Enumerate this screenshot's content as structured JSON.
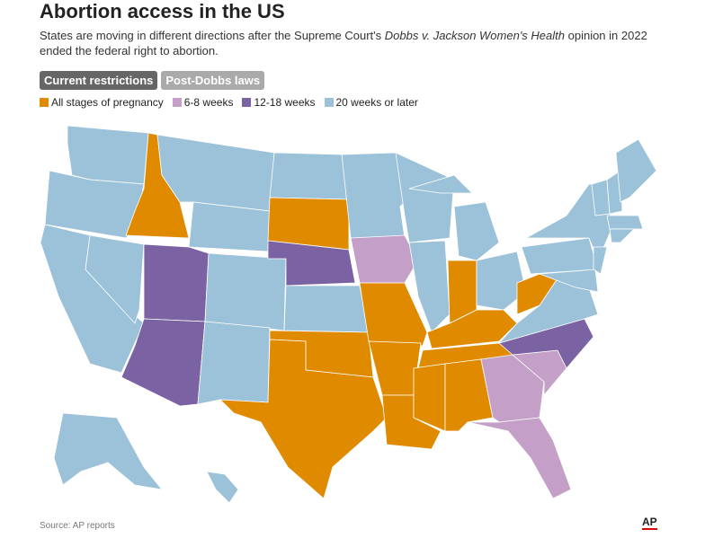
{
  "title": "Abortion access in the US",
  "subtitle": [
    "States are moving in different directions after the Supreme Court's ",
    "Dobbs v. Jackson Women's Health",
    " opinion in 2022 ended the federal right to abortion."
  ],
  "tabs": [
    "Current restrictions",
    "Post-Dobbs laws"
  ],
  "legend": [
    {
      "label": "All stages of pregnancy",
      "color": "#e08a00"
    },
    {
      "label": "6-8 weeks",
      "color": "#c4a0c8"
    },
    {
      "label": "12-18 weeks",
      "color": "#7b62a3"
    },
    {
      "label": "20 weeks or later",
      "color": "#9bc2d9"
    }
  ],
  "source": "Source: AP reports",
  "logo": "AP"
}
